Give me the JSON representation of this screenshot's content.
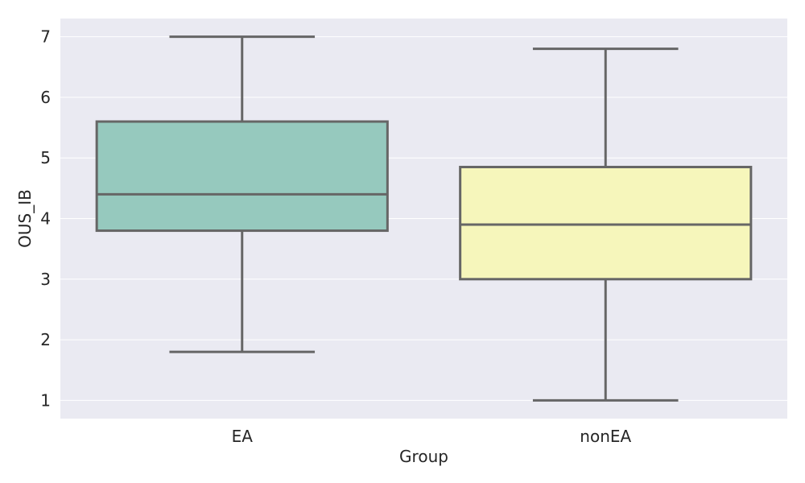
{
  "chart_data": {
    "type": "box",
    "xlabel": "Group",
    "ylabel": "OUS_IB",
    "ylim": [
      0.7,
      7.3
    ],
    "yticks": [
      1,
      2,
      3,
      4,
      5,
      6,
      7
    ],
    "grid": true,
    "categories": [
      "EA",
      "nonEA"
    ],
    "boxes": [
      {
        "category": "EA",
        "min": 1.8,
        "q1": 3.8,
        "median": 4.4,
        "q3": 5.6,
        "max": 7.0,
        "color": "#96c9be"
      },
      {
        "category": "nonEA",
        "min": 1.0,
        "q1": 3.0,
        "median": 3.9,
        "q3": 4.85,
        "max": 6.8,
        "color": "#f6f6bb"
      }
    ],
    "colors": {
      "background": "#eaeaf2",
      "grid": "#ffffff",
      "line": "#666666"
    }
  }
}
